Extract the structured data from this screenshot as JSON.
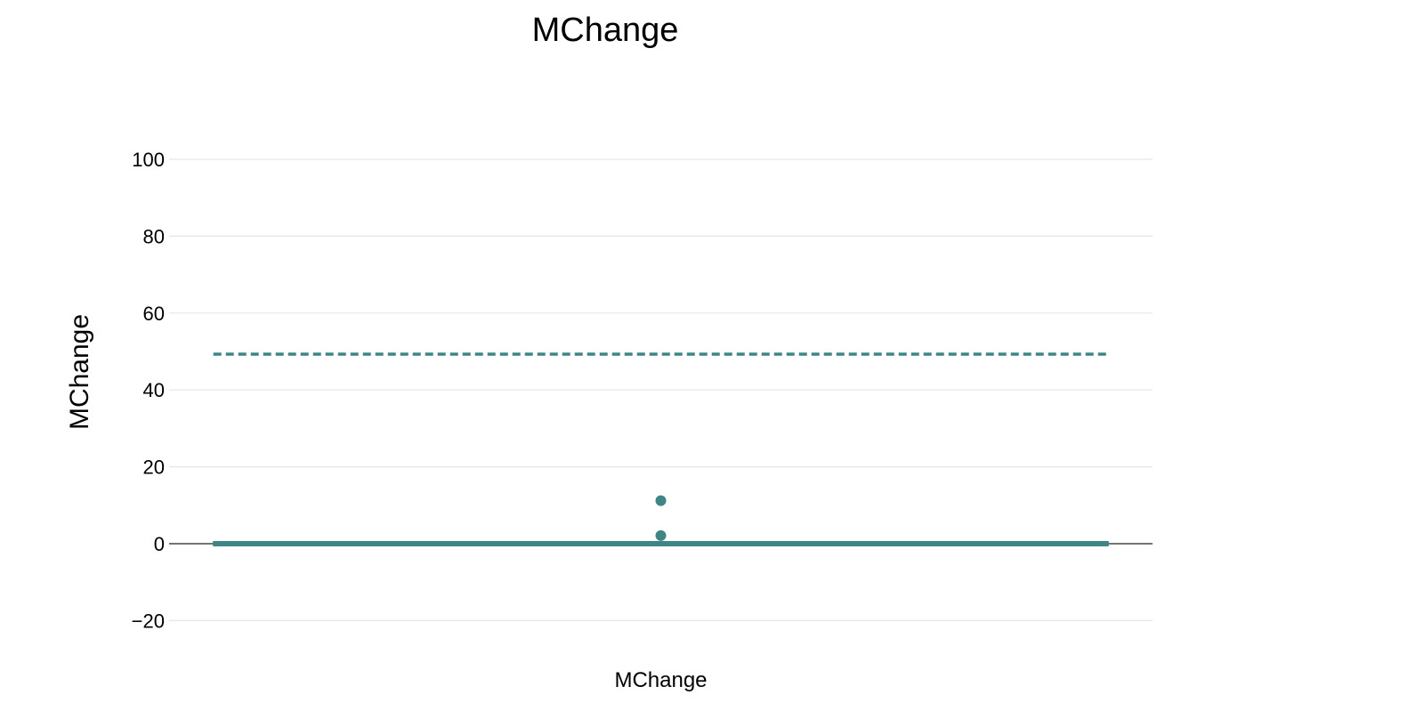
{
  "chart_data": {
    "type": "box",
    "title": "MChange",
    "ylabel": "MChange",
    "xlabel": "",
    "categories": [
      "MChange"
    ],
    "ylim": [
      -28,
      110
    ],
    "yticks": [
      100,
      80,
      60,
      40,
      20,
      0,
      -20
    ],
    "ytick_labels": [
      "100",
      "80",
      "60",
      "40",
      "20",
      "0",
      "−20"
    ],
    "grid": true,
    "legend": "none",
    "color": "#3f8585",
    "series": [
      {
        "category": "MChange",
        "q1": 0,
        "median": 0,
        "q3": 0,
        "whisker_low": 0,
        "whisker_high": 0,
        "mean": 49.3,
        "outliers": [
          11.2,
          2.1
        ]
      }
    ]
  }
}
